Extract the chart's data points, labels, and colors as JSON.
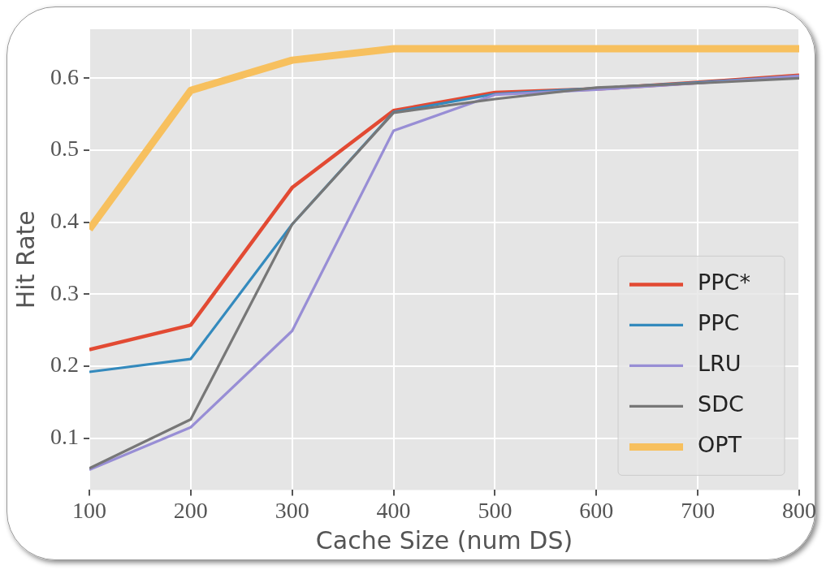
{
  "chart_data": {
    "type": "line",
    "xlabel": "Cache Size (num DS)",
    "ylabel": "Hit Rate",
    "x": [
      100,
      200,
      300,
      400,
      500,
      600,
      700,
      800
    ],
    "series": [
      {
        "name": "PPC*",
        "color": "#e24a33",
        "values": [
          0.223,
          0.257,
          0.448,
          0.555,
          0.58,
          0.585,
          0.594,
          0.604
        ]
      },
      {
        "name": "PPC",
        "color": "#348abd",
        "values": [
          0.192,
          0.21,
          0.397,
          0.553,
          0.578,
          0.586,
          0.594,
          0.603
        ]
      },
      {
        "name": "LRU",
        "color": "#988ed5",
        "values": [
          0.056,
          0.115,
          0.249,
          0.527,
          0.577,
          0.584,
          0.593,
          0.603
        ]
      },
      {
        "name": "SDC",
        "color": "#777777",
        "values": [
          0.058,
          0.126,
          0.397,
          0.552,
          0.571,
          0.587,
          0.593,
          0.6
        ]
      },
      {
        "name": "OPT",
        "color": "#f7c05e",
        "values": [
          0.39,
          0.583,
          0.625,
          0.641,
          0.641,
          0.641,
          0.641,
          0.641
        ]
      }
    ],
    "xlim": [
      100,
      800
    ],
    "xticks": [
      100,
      200,
      300,
      400,
      500,
      600,
      700,
      800
    ],
    "ylim": [
      0.028,
      0.668
    ],
    "yticks": [
      0.1,
      0.2,
      0.3,
      0.4,
      0.5,
      0.6
    ],
    "grid": true,
    "legend": "bottom right",
    "marker": "none",
    "line_style": "solid"
  }
}
